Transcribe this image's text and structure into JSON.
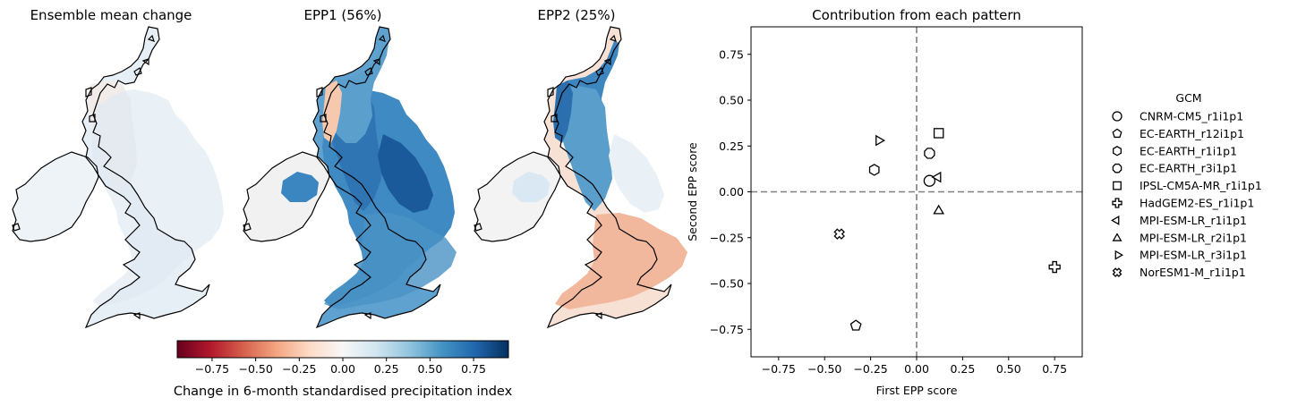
{
  "maps": [
    {
      "title": "Ensemble mean change"
    },
    {
      "title": "EPP1 (56%)"
    },
    {
      "title": "EPP2 (25%)"
    }
  ],
  "colorbar": {
    "label": "Change in 6-month standardised precipitation index",
    "range": [
      -0.95,
      0.95
    ],
    "ticks": [
      -0.75,
      -0.5,
      -0.25,
      0.0,
      0.25,
      0.5,
      0.75
    ],
    "tick_labels": [
      "−0.75",
      "−0.50",
      "−0.25",
      "0.00",
      "0.25",
      "0.50",
      "0.75"
    ],
    "colormap": [
      "#67001f",
      "#b2182b",
      "#d6604d",
      "#f4a582",
      "#fddbc7",
      "#f7f7f7",
      "#d1e5f0",
      "#92c5de",
      "#4393c3",
      "#2166ac",
      "#053061"
    ]
  },
  "chart_data": {
    "type": "scatter",
    "title": "Contribution from each pattern",
    "xlabel": "First EPP score",
    "ylabel": "Second EPP score",
    "xlim": [
      -0.9,
      0.9
    ],
    "ylim": [
      -0.9,
      0.9
    ],
    "xticks": [
      -0.75,
      -0.5,
      -0.25,
      0.0,
      0.25,
      0.5,
      0.75
    ],
    "xtick_labels": [
      "−0.75",
      "−0.50",
      "−0.25",
      "0.00",
      "0.25",
      "0.50",
      "0.75"
    ],
    "yticks": [
      -0.75,
      -0.5,
      -0.25,
      0.0,
      0.25,
      0.5,
      0.75
    ],
    "ytick_labels": [
      "−0.75",
      "−0.50",
      "−0.25",
      "0.00",
      "0.25",
      "0.50",
      "0.75"
    ],
    "reference_lines": {
      "x": 0,
      "y": 0,
      "style": "dashed",
      "color": "#808080"
    },
    "grid": false,
    "legend": {
      "title": "GCM",
      "placement": "right-outside"
    },
    "series": [
      {
        "name": "CNRM-CM5_r1i1p1",
        "marker": "circle",
        "x": 0.07,
        "y": 0.06
      },
      {
        "name": "EC-EARTH_r12i1p1",
        "marker": "pentagon",
        "x": -0.33,
        "y": -0.73
      },
      {
        "name": "EC-EARTH_r1i1p1",
        "marker": "hexagon",
        "x": -0.23,
        "y": 0.12
      },
      {
        "name": "EC-EARTH_r3i1p1",
        "marker": "octagon",
        "x": 0.07,
        "y": 0.21
      },
      {
        "name": "IPSL-CM5A-MR_r1i1p1",
        "marker": "square",
        "x": 0.12,
        "y": 0.32
      },
      {
        "name": "HadGEM2-ES_r1i1p1",
        "marker": "plus",
        "x": 0.75,
        "y": -0.41
      },
      {
        "name": "MPI-ESM-LR_r1i1p1",
        "marker": "triangle-left",
        "x": 0.12,
        "y": 0.08
      },
      {
        "name": "MPI-ESM-LR_r2i1p1",
        "marker": "triangle-up",
        "x": 0.12,
        "y": -0.1
      },
      {
        "name": "MPI-ESM-LR_r3i1p1",
        "marker": "triangle-right",
        "x": -0.21,
        "y": 0.28
      },
      {
        "name": "NorESM1-M_r1i1p1",
        "marker": "x-filled",
        "x": -0.42,
        "y": -0.23
      }
    ]
  }
}
